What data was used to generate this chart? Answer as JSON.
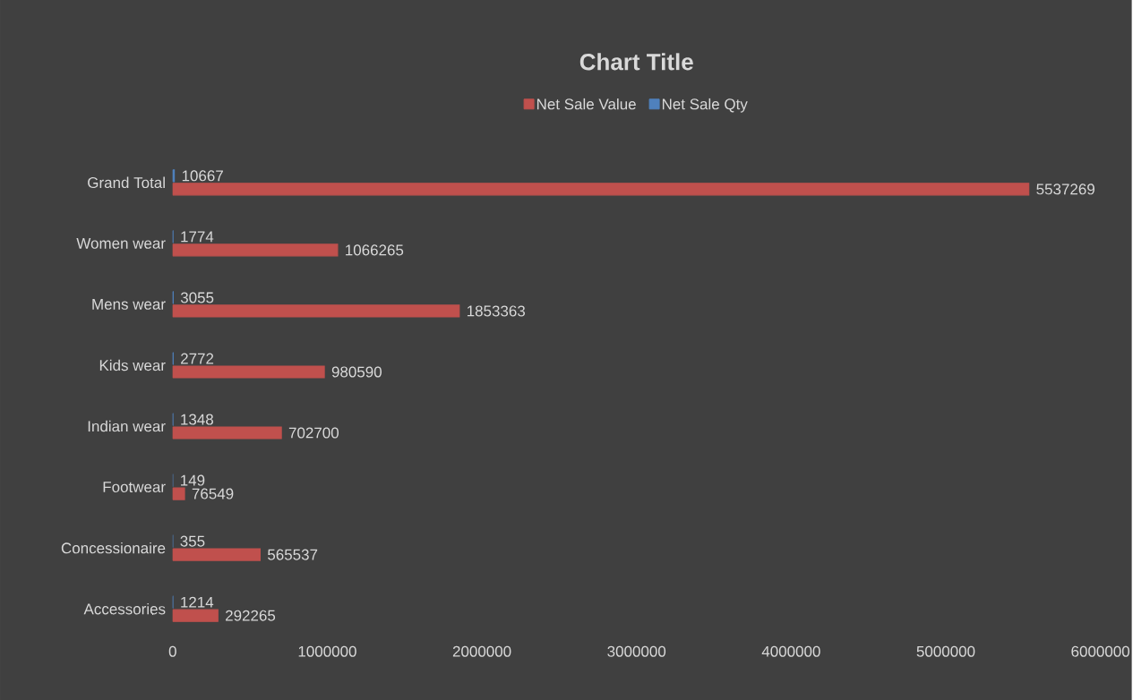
{
  "chart_data": {
    "type": "bar",
    "orientation": "horizontal",
    "title": "Chart Title",
    "categories": [
      "Grand Total",
      "Women wear",
      "Mens wear",
      "Kids wear",
      "Indian wear",
      "Footwear",
      "Concessionaire",
      "Accessories"
    ],
    "series": [
      {
        "name": "Net Sale Value",
        "color": "#c0504d",
        "values": [
          5537269,
          1066265,
          1853363,
          980590,
          702700,
          76549,
          565537,
          292265
        ]
      },
      {
        "name": "Net Sale Qty",
        "color": "#4f81bd",
        "values": [
          10667,
          1774,
          3055,
          2772,
          1348,
          149,
          355,
          1214
        ]
      }
    ],
    "xlim": [
      0,
      6000000
    ],
    "xticks": [
      0,
      1000000,
      2000000,
      3000000,
      4000000,
      5000000,
      6000000
    ],
    "data_labels": true,
    "legend": "top",
    "grid": false
  }
}
